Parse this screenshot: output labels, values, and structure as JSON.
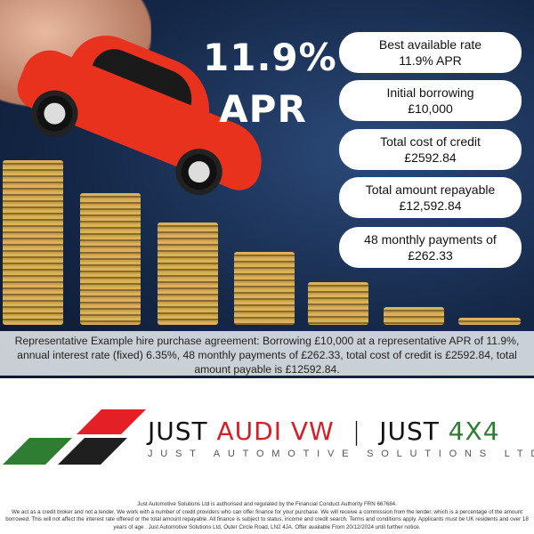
{
  "headline": {
    "rate": "11.9%",
    "unit": "APR"
  },
  "info_pills": [
    {
      "label": "Best available rate",
      "value": "11.9% APR"
    },
    {
      "label": "Initial borrowing",
      "value": "£10,000"
    },
    {
      "label": "Total cost of credit",
      "value": "£2592.84"
    },
    {
      "label": "Total amount repayable",
      "value": "£12,592.84"
    },
    {
      "label": "48 monthly payments of",
      "value": "£262.33"
    }
  ],
  "representative_example": "Representative Example hire purchase agreement: Borrowing £10,000 at a representative APR of 11.9%, annual interest rate (fixed) 6.35%, 48 monthly payments of £262.33, total cost of credit is £2592.84, total amount payable is £12592.84.",
  "logo": {
    "just1": "JUST ",
    "audi_vw": "AUDI VW",
    "separator": "|",
    "just2": "JUST ",
    "four_x_four": "4X4",
    "tagline": "JUST AUTOMOTIVE SOLUTIONS LTD",
    "colors": {
      "red": "#d41f27",
      "green": "#2e7d32",
      "black": "#1f1f1f"
    }
  },
  "footer": {
    "line1": "Just Automotive Solutions Ltd is authorised and regulated by the Financial Conduct Authority FRN 667684.",
    "line2": "We act as a credit broker and not a lender. We work with a number of credit providers who can offer finance for your purchase. We will receive a commission from the lender, which is a percentage of the amount borrowed. This will not affect the interest rate offered or the total amount repayable. All finance is subject to status, income and credit search. Terms and conditions apply. Applicants must be UK residents and over 18 years of age . Just Automotive Solutions Ltd, Outer Circle Road, LN2 4JA. Offer available From 20/12/2024 until further notice."
  }
}
